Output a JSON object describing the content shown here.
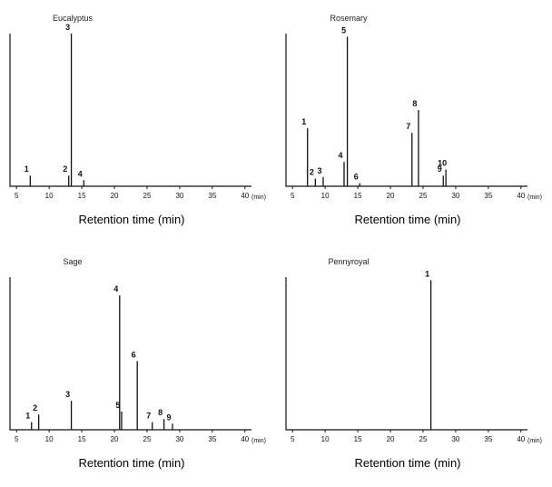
{
  "chart_data": [
    {
      "type": "bar",
      "title": "Eucalyptus",
      "xlabel": "Retention time (min)",
      "x_unit": "(min)",
      "xlim": [
        4,
        41
      ],
      "ylim": [
        0,
        1
      ],
      "xticks": [
        5,
        10,
        15,
        20,
        25,
        30,
        35,
        40
      ],
      "peaks": [
        {
          "label": "1",
          "x": 7.1,
          "y": 0.07
        },
        {
          "label": "2",
          "x": 13.0,
          "y": 0.07
        },
        {
          "label": "3",
          "x": 13.4,
          "y": 1.0
        },
        {
          "label": "4",
          "x": 15.3,
          "y": 0.04
        }
      ]
    },
    {
      "type": "bar",
      "title": "Rosemary",
      "xlabel": "Retention time (min)",
      "x_unit": "(min)",
      "xlim": [
        4,
        41
      ],
      "ylim": [
        0,
        1
      ],
      "xticks": [
        5,
        10,
        15,
        20,
        25,
        30,
        35,
        40
      ],
      "peaks": [
        {
          "label": "1",
          "x": 7.3,
          "y": 0.38
        },
        {
          "label": "2",
          "x": 8.5,
          "y": 0.05
        },
        {
          "label": "3",
          "x": 9.7,
          "y": 0.06
        },
        {
          "label": "4",
          "x": 12.9,
          "y": 0.16
        },
        {
          "label": "5",
          "x": 13.4,
          "y": 0.98
        },
        {
          "label": "6",
          "x": 15.3,
          "y": 0.02
        },
        {
          "label": "7",
          "x": 23.3,
          "y": 0.35
        },
        {
          "label": "8",
          "x": 24.3,
          "y": 0.5
        },
        {
          "label": "9",
          "x": 28.1,
          "y": 0.07
        },
        {
          "label": "10",
          "x": 28.5,
          "y": 0.11
        }
      ]
    },
    {
      "type": "bar",
      "title": "Sage",
      "xlabel": "Retention time (min)",
      "x_unit": "(min)",
      "xlim": [
        4,
        41
      ],
      "ylim": [
        0,
        1
      ],
      "xticks": [
        5,
        10,
        15,
        20,
        25,
        30,
        35,
        40
      ],
      "peaks": [
        {
          "label": "1",
          "x": 7.3,
          "y": 0.05
        },
        {
          "label": "2",
          "x": 8.4,
          "y": 0.1
        },
        {
          "label": "3",
          "x": 13.4,
          "y": 0.19
        },
        {
          "label": "4",
          "x": 20.8,
          "y": 0.88
        },
        {
          "label": "5",
          "x": 21.1,
          "y": 0.12
        },
        {
          "label": "6",
          "x": 23.5,
          "y": 0.45
        },
        {
          "label": "7",
          "x": 25.8,
          "y": 0.05
        },
        {
          "label": "8",
          "x": 27.6,
          "y": 0.07
        },
        {
          "label": "9",
          "x": 28.9,
          "y": 0.04
        }
      ]
    },
    {
      "type": "bar",
      "title": "Pennyroyal",
      "xlabel": "Retention time (min)",
      "x_unit": "(min)",
      "xlim": [
        4,
        41
      ],
      "ylim": [
        0,
        1
      ],
      "xticks": [
        5,
        10,
        15,
        20,
        25,
        30,
        35,
        40
      ],
      "peaks": [
        {
          "label": "1",
          "x": 26.2,
          "y": 0.98
        }
      ]
    }
  ]
}
